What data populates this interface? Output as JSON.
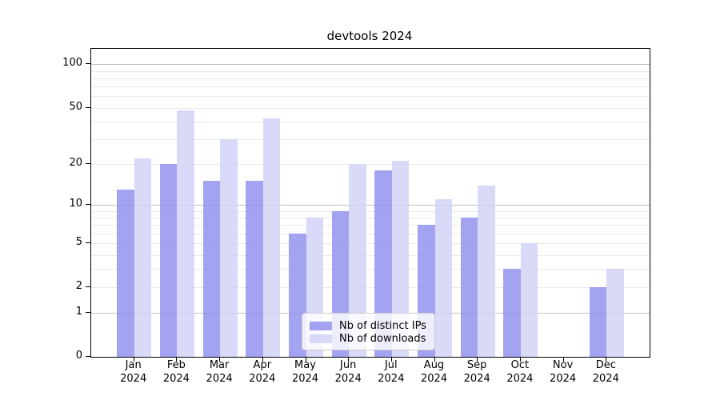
{
  "chart_data": {
    "type": "bar",
    "title": "devtools 2024",
    "categories": [
      "Jan",
      "Feb",
      "Mar",
      "Apr",
      "May",
      "Jun",
      "Jul",
      "Aug",
      "Sep",
      "Oct",
      "Nov",
      "Dec"
    ],
    "category_year": "2024",
    "series": [
      {
        "name": "Nb of distinct IPs",
        "color": "rgba(143,143,238,0.82)",
        "values": [
          13,
          20,
          15,
          15,
          6,
          9,
          18,
          7,
          8,
          3,
          0,
          2
        ]
      },
      {
        "name": "Nb of downloads",
        "color": "rgba(209,209,247,0.82)",
        "values": [
          22,
          48,
          30,
          42,
          8,
          20,
          21,
          11,
          14,
          5,
          0,
          3
        ]
      }
    ],
    "y_axis": {
      "scale": "log1p",
      "tick_labels": [
        0,
        1,
        2,
        5,
        10,
        20,
        50,
        100
      ],
      "major_gridlines": [
        1,
        10,
        100
      ],
      "minor_gridlines": [
        2,
        3,
        4,
        5,
        6,
        7,
        8,
        9,
        20,
        30,
        40,
        50,
        60,
        70,
        80,
        90
      ],
      "top_value": 128,
      "ylim": [
        0,
        128
      ]
    },
    "xlabel": "",
    "ylabel": "",
    "legend": {
      "position": "lower-center",
      "entries": [
        "Nb of distinct IPs",
        "Nb of downloads"
      ]
    },
    "grid": "on"
  }
}
